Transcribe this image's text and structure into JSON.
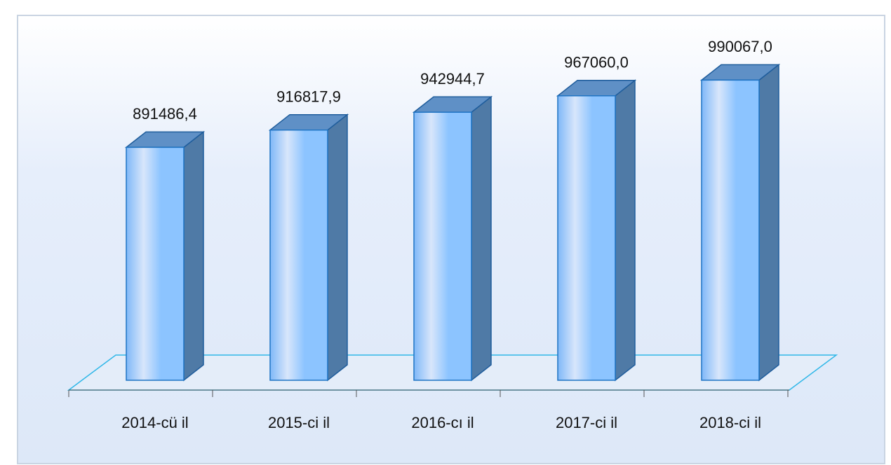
{
  "chart_data": {
    "type": "bar3d",
    "categories": [
      "2014-cü il",
      "2015-ci il",
      "2016-cı il",
      "2017-ci il",
      "2018-ci il"
    ],
    "values": [
      891486.4,
      916817.9,
      942944.7,
      967060.0,
      990067.0
    ],
    "value_labels": [
      "891486,4",
      "916817,9",
      "942944,7",
      "967060,0",
      "990067,0"
    ],
    "color": "#8cc4ff",
    "ylim": [
      550000,
      1050000
    ]
  }
}
